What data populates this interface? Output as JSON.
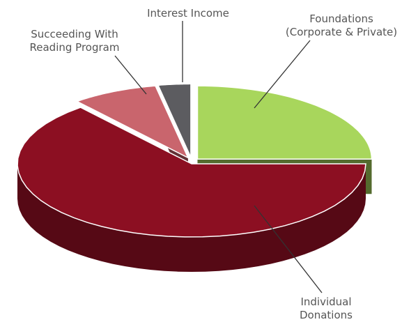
{
  "chart_data": {
    "type": "pie",
    "categories": [
      "Foundations\n(Corporate & Private)",
      "Individual\nDonations",
      "Succeeding With\nReading Program",
      "Interest Income"
    ],
    "values": [
      25,
      64,
      8,
      3
    ],
    "colors": [
      "#a8d65c",
      "#8c0f22",
      "#c9656d",
      "#5c5c60"
    ]
  }
}
